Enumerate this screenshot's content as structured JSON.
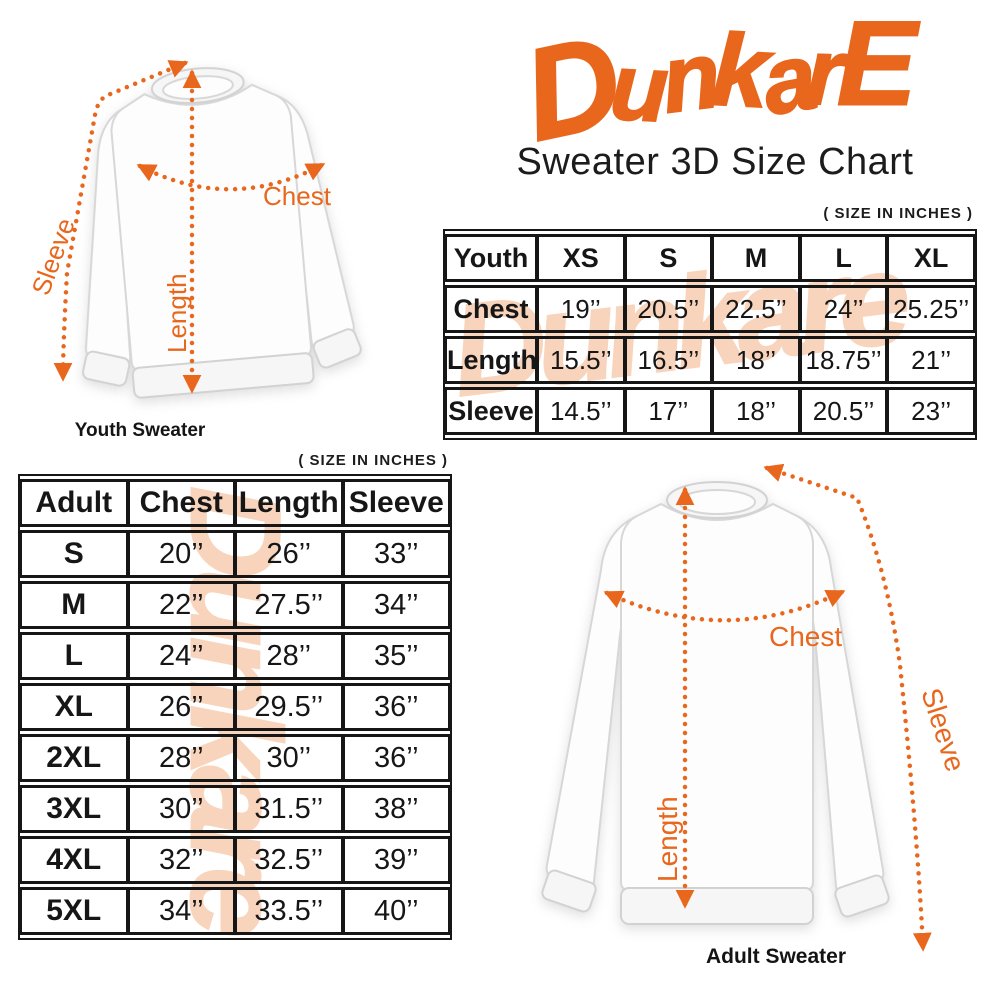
{
  "logo": {
    "text": "DunkarE"
  },
  "title": "Sweater 3D Size Chart",
  "size_note": "( SIZE IN INCHES )",
  "watermark": {
    "text": "Dunkare"
  },
  "diagram_labels": {
    "chest": "Chest",
    "length": "Length",
    "sleeve": "Sleeve"
  },
  "youth": {
    "caption": "Youth Sweater",
    "table": {
      "header": [
        "Youth",
        "XS",
        "S",
        "M",
        "L",
        "XL"
      ],
      "rows": [
        {
          "label": "Chest",
          "values": [
            "19’’",
            "20.5’’",
            "22.5’’",
            "24’’",
            "25.25’’"
          ]
        },
        {
          "label": "Length",
          "values": [
            "15.5’’",
            "16.5’’",
            "18’’",
            "18.75’’",
            "21’’"
          ]
        },
        {
          "label": "Sleeve",
          "values": [
            "14.5’’",
            "17’’",
            "18’’",
            "20.5’’",
            "23’’"
          ]
        }
      ]
    }
  },
  "adult": {
    "caption": "Adult Sweater",
    "table": {
      "header": [
        "Adult",
        "Chest",
        "Length",
        "Sleeve"
      ],
      "rows": [
        {
          "label": "S",
          "values": [
            "20’’",
            "26’’",
            "33’’"
          ]
        },
        {
          "label": "M",
          "values": [
            "22’’",
            "27.5’’",
            "34’’"
          ]
        },
        {
          "label": "L",
          "values": [
            "24’’",
            "28’’",
            "35’’"
          ]
        },
        {
          "label": "XL",
          "values": [
            "26’’",
            "29.5’’",
            "36’’"
          ]
        },
        {
          "label": "2XL",
          "values": [
            "28’’",
            "30’’",
            "36’’"
          ]
        },
        {
          "label": "3XL",
          "values": [
            "30’’",
            "31.5’’",
            "38’’"
          ]
        },
        {
          "label": "4XL",
          "values": [
            "32’’",
            "32.5’’",
            "39’’"
          ]
        },
        {
          "label": "5XL",
          "values": [
            "34’’",
            "33.5’’",
            "40’’"
          ]
        }
      ]
    }
  },
  "colors": {
    "accent": "#E8671C",
    "watermark": "#F8D4BC",
    "text": "#161616"
  }
}
